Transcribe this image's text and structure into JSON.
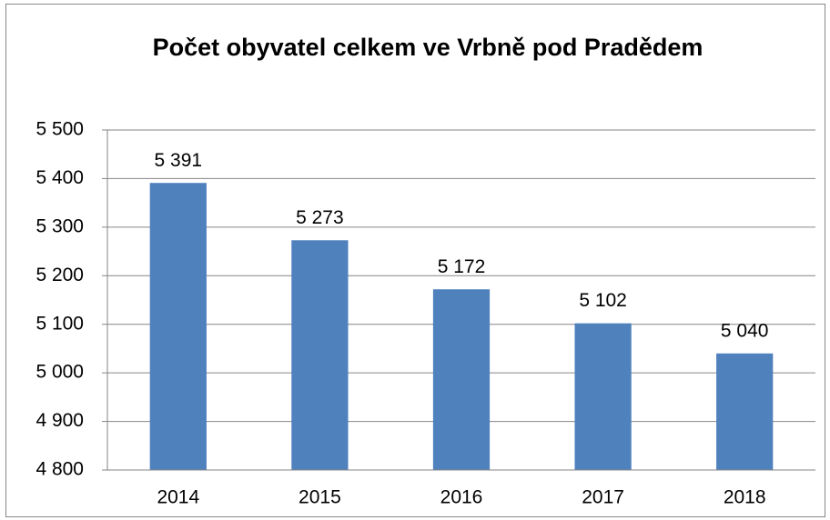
{
  "chart_data": {
    "type": "bar",
    "title": "Počet obyvatel celkem ve Vrbně pod Pradědem",
    "categories": [
      "2014",
      "2015",
      "2016",
      "2017",
      "2018"
    ],
    "values": [
      5391,
      5273,
      5172,
      5102,
      5040
    ],
    "value_labels": [
      "5 391",
      "5 273",
      "5 172",
      "5 102",
      "5 040"
    ],
    "color": "#4f81bd",
    "ylim": [
      4800,
      5500
    ],
    "yticks": [
      {
        "value": 4800,
        "label": "4 800"
      },
      {
        "value": 4900,
        "label": "4 900"
      },
      {
        "value": 5000,
        "label": "5 000"
      },
      {
        "value": 5100,
        "label": "5 100"
      },
      {
        "value": 5200,
        "label": "5 200"
      },
      {
        "value": 5300,
        "label": "5 300"
      },
      {
        "value": 5400,
        "label": "5 400"
      },
      {
        "value": 5500,
        "label": "5 500"
      }
    ],
    "grid": true
  }
}
